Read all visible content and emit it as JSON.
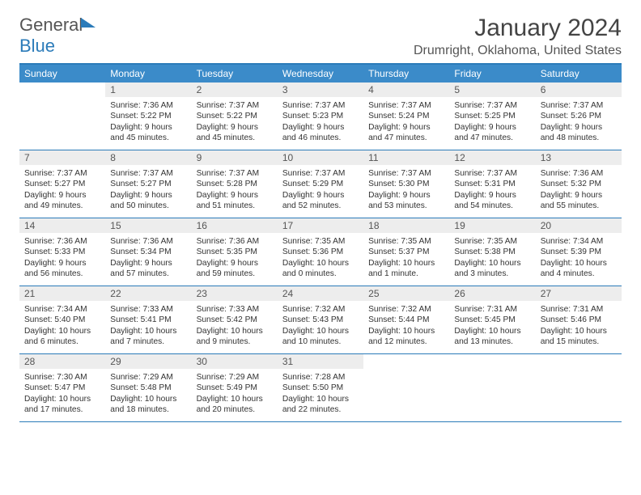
{
  "brand": {
    "part1": "General",
    "part2": "Blue"
  },
  "title": "January 2024",
  "location": "Drumright, Oklahoma, United States",
  "colors": {
    "accent": "#3b8bc9",
    "border": "#2b7bb9",
    "daynum_bg": "#ededed",
    "text": "#333333",
    "background": "#ffffff"
  },
  "days_of_week": [
    "Sunday",
    "Monday",
    "Tuesday",
    "Wednesday",
    "Thursday",
    "Friday",
    "Saturday"
  ],
  "weeks": [
    [
      {
        "n": "",
        "sunrise": "",
        "sunset": "",
        "daylight": ""
      },
      {
        "n": "1",
        "sunrise": "Sunrise: 7:36 AM",
        "sunset": "Sunset: 5:22 PM",
        "daylight": "Daylight: 9 hours and 45 minutes."
      },
      {
        "n": "2",
        "sunrise": "Sunrise: 7:37 AM",
        "sunset": "Sunset: 5:22 PM",
        "daylight": "Daylight: 9 hours and 45 minutes."
      },
      {
        "n": "3",
        "sunrise": "Sunrise: 7:37 AM",
        "sunset": "Sunset: 5:23 PM",
        "daylight": "Daylight: 9 hours and 46 minutes."
      },
      {
        "n": "4",
        "sunrise": "Sunrise: 7:37 AM",
        "sunset": "Sunset: 5:24 PM",
        "daylight": "Daylight: 9 hours and 47 minutes."
      },
      {
        "n": "5",
        "sunrise": "Sunrise: 7:37 AM",
        "sunset": "Sunset: 5:25 PM",
        "daylight": "Daylight: 9 hours and 47 minutes."
      },
      {
        "n": "6",
        "sunrise": "Sunrise: 7:37 AM",
        "sunset": "Sunset: 5:26 PM",
        "daylight": "Daylight: 9 hours and 48 minutes."
      }
    ],
    [
      {
        "n": "7",
        "sunrise": "Sunrise: 7:37 AM",
        "sunset": "Sunset: 5:27 PM",
        "daylight": "Daylight: 9 hours and 49 minutes."
      },
      {
        "n": "8",
        "sunrise": "Sunrise: 7:37 AM",
        "sunset": "Sunset: 5:27 PM",
        "daylight": "Daylight: 9 hours and 50 minutes."
      },
      {
        "n": "9",
        "sunrise": "Sunrise: 7:37 AM",
        "sunset": "Sunset: 5:28 PM",
        "daylight": "Daylight: 9 hours and 51 minutes."
      },
      {
        "n": "10",
        "sunrise": "Sunrise: 7:37 AM",
        "sunset": "Sunset: 5:29 PM",
        "daylight": "Daylight: 9 hours and 52 minutes."
      },
      {
        "n": "11",
        "sunrise": "Sunrise: 7:37 AM",
        "sunset": "Sunset: 5:30 PM",
        "daylight": "Daylight: 9 hours and 53 minutes."
      },
      {
        "n": "12",
        "sunrise": "Sunrise: 7:37 AM",
        "sunset": "Sunset: 5:31 PM",
        "daylight": "Daylight: 9 hours and 54 minutes."
      },
      {
        "n": "13",
        "sunrise": "Sunrise: 7:36 AM",
        "sunset": "Sunset: 5:32 PM",
        "daylight": "Daylight: 9 hours and 55 minutes."
      }
    ],
    [
      {
        "n": "14",
        "sunrise": "Sunrise: 7:36 AM",
        "sunset": "Sunset: 5:33 PM",
        "daylight": "Daylight: 9 hours and 56 minutes."
      },
      {
        "n": "15",
        "sunrise": "Sunrise: 7:36 AM",
        "sunset": "Sunset: 5:34 PM",
        "daylight": "Daylight: 9 hours and 57 minutes."
      },
      {
        "n": "16",
        "sunrise": "Sunrise: 7:36 AM",
        "sunset": "Sunset: 5:35 PM",
        "daylight": "Daylight: 9 hours and 59 minutes."
      },
      {
        "n": "17",
        "sunrise": "Sunrise: 7:35 AM",
        "sunset": "Sunset: 5:36 PM",
        "daylight": "Daylight: 10 hours and 0 minutes."
      },
      {
        "n": "18",
        "sunrise": "Sunrise: 7:35 AM",
        "sunset": "Sunset: 5:37 PM",
        "daylight": "Daylight: 10 hours and 1 minute."
      },
      {
        "n": "19",
        "sunrise": "Sunrise: 7:35 AM",
        "sunset": "Sunset: 5:38 PM",
        "daylight": "Daylight: 10 hours and 3 minutes."
      },
      {
        "n": "20",
        "sunrise": "Sunrise: 7:34 AM",
        "sunset": "Sunset: 5:39 PM",
        "daylight": "Daylight: 10 hours and 4 minutes."
      }
    ],
    [
      {
        "n": "21",
        "sunrise": "Sunrise: 7:34 AM",
        "sunset": "Sunset: 5:40 PM",
        "daylight": "Daylight: 10 hours and 6 minutes."
      },
      {
        "n": "22",
        "sunrise": "Sunrise: 7:33 AM",
        "sunset": "Sunset: 5:41 PM",
        "daylight": "Daylight: 10 hours and 7 minutes."
      },
      {
        "n": "23",
        "sunrise": "Sunrise: 7:33 AM",
        "sunset": "Sunset: 5:42 PM",
        "daylight": "Daylight: 10 hours and 9 minutes."
      },
      {
        "n": "24",
        "sunrise": "Sunrise: 7:32 AM",
        "sunset": "Sunset: 5:43 PM",
        "daylight": "Daylight: 10 hours and 10 minutes."
      },
      {
        "n": "25",
        "sunrise": "Sunrise: 7:32 AM",
        "sunset": "Sunset: 5:44 PM",
        "daylight": "Daylight: 10 hours and 12 minutes."
      },
      {
        "n": "26",
        "sunrise": "Sunrise: 7:31 AM",
        "sunset": "Sunset: 5:45 PM",
        "daylight": "Daylight: 10 hours and 13 minutes."
      },
      {
        "n": "27",
        "sunrise": "Sunrise: 7:31 AM",
        "sunset": "Sunset: 5:46 PM",
        "daylight": "Daylight: 10 hours and 15 minutes."
      }
    ],
    [
      {
        "n": "28",
        "sunrise": "Sunrise: 7:30 AM",
        "sunset": "Sunset: 5:47 PM",
        "daylight": "Daylight: 10 hours and 17 minutes."
      },
      {
        "n": "29",
        "sunrise": "Sunrise: 7:29 AM",
        "sunset": "Sunset: 5:48 PM",
        "daylight": "Daylight: 10 hours and 18 minutes."
      },
      {
        "n": "30",
        "sunrise": "Sunrise: 7:29 AM",
        "sunset": "Sunset: 5:49 PM",
        "daylight": "Daylight: 10 hours and 20 minutes."
      },
      {
        "n": "31",
        "sunrise": "Sunrise: 7:28 AM",
        "sunset": "Sunset: 5:50 PM",
        "daylight": "Daylight: 10 hours and 22 minutes."
      },
      {
        "n": "",
        "sunrise": "",
        "sunset": "",
        "daylight": ""
      },
      {
        "n": "",
        "sunrise": "",
        "sunset": "",
        "daylight": ""
      },
      {
        "n": "",
        "sunrise": "",
        "sunset": "",
        "daylight": ""
      }
    ]
  ]
}
